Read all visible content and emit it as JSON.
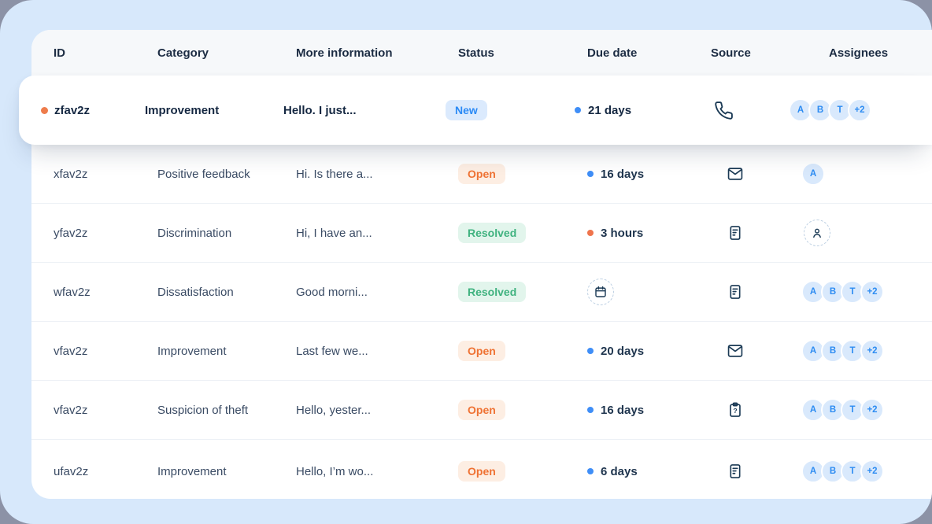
{
  "colors": {
    "accent_blue": "#2a8af6",
    "status_open_orange": "#ef7233",
    "status_resolved_green": "#3fb27f",
    "status_new_blue": "#2a8af6",
    "canvas_blue": "#d7e8fb",
    "dot_blue": "#3f8ef7",
    "dot_orange": "#ef744c"
  },
  "table": {
    "columns": [
      {
        "key": "id",
        "label": "ID"
      },
      {
        "key": "category",
        "label": "Category"
      },
      {
        "key": "info",
        "label": "More information"
      },
      {
        "key": "status",
        "label": "Status"
      },
      {
        "key": "due",
        "label": "Due date"
      },
      {
        "key": "source",
        "label": "Source"
      },
      {
        "key": "assignees",
        "label": "Assignees"
      }
    ],
    "rows": [
      {
        "id": "zfav2z",
        "category": "Improvement",
        "info": "Hello. I just...",
        "status": {
          "label": "New",
          "type": "new"
        },
        "due": {
          "text": "21 days",
          "dot": "blue"
        },
        "source": "phone",
        "assignees": {
          "avatars": [
            "A",
            "B",
            "T",
            "+2"
          ]
        },
        "highlight": true,
        "leading_dot": "orange"
      },
      {
        "id": "xfav2z",
        "category": "Positive feedback",
        "info": "Hi. Is there a...",
        "status": {
          "label": "Open",
          "type": "open"
        },
        "due": {
          "text": "16 days",
          "dot": "blue"
        },
        "source": "mail",
        "assignees": {
          "avatars": [
            "A"
          ]
        }
      },
      {
        "id": "yfav2z",
        "category": "Discrimination",
        "info": "Hi, I have an...",
        "status": {
          "label": "Resolved",
          "type": "resolved"
        },
        "due": {
          "text": "3 hours",
          "dot": "orange"
        },
        "source": "note",
        "assignees": {
          "unassigned": true
        }
      },
      {
        "id": "wfav2z",
        "category": "Dissatisfaction",
        "info": "Good morni...",
        "status": {
          "label": "Resolved",
          "type": "resolved"
        },
        "due": {
          "none": true
        },
        "source": "note",
        "assignees": {
          "avatars": [
            "A",
            "B",
            "T",
            "+2"
          ]
        }
      },
      {
        "id": "vfav2z",
        "category": "Improvement",
        "info": "Last few we...",
        "status": {
          "label": "Open",
          "type": "open"
        },
        "due": {
          "text": "20 days",
          "dot": "blue"
        },
        "source": "mail",
        "assignees": {
          "avatars": [
            "A",
            "B",
            "T",
            "+2"
          ]
        }
      },
      {
        "id": "vfav2z",
        "category": "Suspicion of theft",
        "info": "Hello, yester...",
        "status": {
          "label": "Open",
          "type": "open"
        },
        "due": {
          "text": "16 days",
          "dot": "blue"
        },
        "source": "clipboard-question",
        "assignees": {
          "avatars": [
            "A",
            "B",
            "T",
            "+2"
          ]
        }
      },
      {
        "id": "ufav2z",
        "category": "Improvement",
        "info": "Hello, I’m wo...",
        "status": {
          "label": "Open",
          "type": "open"
        },
        "due": {
          "text": "6 days",
          "dot": "blue"
        },
        "source": "note",
        "assignees": {
          "avatars": [
            "A",
            "B",
            "T",
            "+2"
          ]
        }
      }
    ]
  }
}
